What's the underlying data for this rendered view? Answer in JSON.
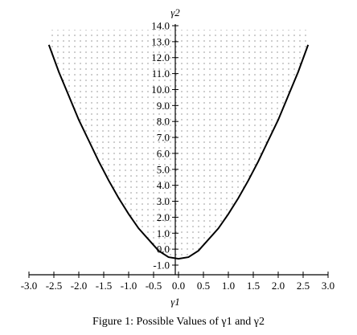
{
  "figure": {
    "caption": "Figure 1: Possible Values of γ1 and γ2"
  },
  "chart_data": {
    "type": "area",
    "xlabel": "γ1",
    "ylabel": "γ2",
    "xlim": [
      -3.0,
      3.0
    ],
    "ylim": [
      -1.0,
      14.0
    ],
    "x_ticks": [
      "-3.0",
      "-2.5",
      "-2.0",
      "-1.5",
      "-1.0",
      "-0.5",
      "0.0",
      "0.5",
      "1.0",
      "1.5",
      "2.0",
      "2.5",
      "3.0"
    ],
    "y_ticks": [
      "-1.0",
      "0.0",
      "1.0",
      "2.0",
      "3.0",
      "4.0",
      "5.0",
      "6.0",
      "7.0",
      "8.0",
      "9.0",
      "10.0",
      "11.0",
      "12.0",
      "13.0",
      "14.0"
    ],
    "x_tick_values": [
      -3.0,
      -2.5,
      -2.0,
      -1.5,
      -1.0,
      -0.5,
      0.0,
      0.5,
      1.0,
      1.5,
      2.0,
      2.5,
      3.0
    ],
    "y_tick_values": [
      -1.0,
      0.0,
      1.0,
      2.0,
      3.0,
      4.0,
      5.0,
      6.0,
      7.0,
      8.0,
      9.0,
      10.0,
      11.0,
      12.0,
      13.0,
      14.0
    ],
    "boundary": {
      "x": [
        -2.6,
        -2.4,
        -2.2,
        -2.0,
        -1.8,
        -1.6,
        -1.4,
        -1.2,
        -1.0,
        -0.8,
        -0.6,
        -0.4,
        -0.2,
        0.0,
        0.2,
        0.4,
        0.6,
        0.8,
        1.0,
        1.2,
        1.4,
        1.6,
        1.8,
        2.0,
        2.2,
        2.4,
        2.6
      ],
      "y": [
        12.8,
        11.1,
        9.6,
        8.1,
        6.8,
        5.5,
        4.3,
        3.2,
        2.2,
        1.3,
        0.6,
        -0.1,
        -0.5,
        -0.6,
        -0.5,
        -0.1,
        0.6,
        1.3,
        2.2,
        3.2,
        4.3,
        5.5,
        6.8,
        8.1,
        9.6,
        11.1,
        12.8
      ]
    },
    "shading": "dotted region above the boundary curve",
    "grid": false
  }
}
